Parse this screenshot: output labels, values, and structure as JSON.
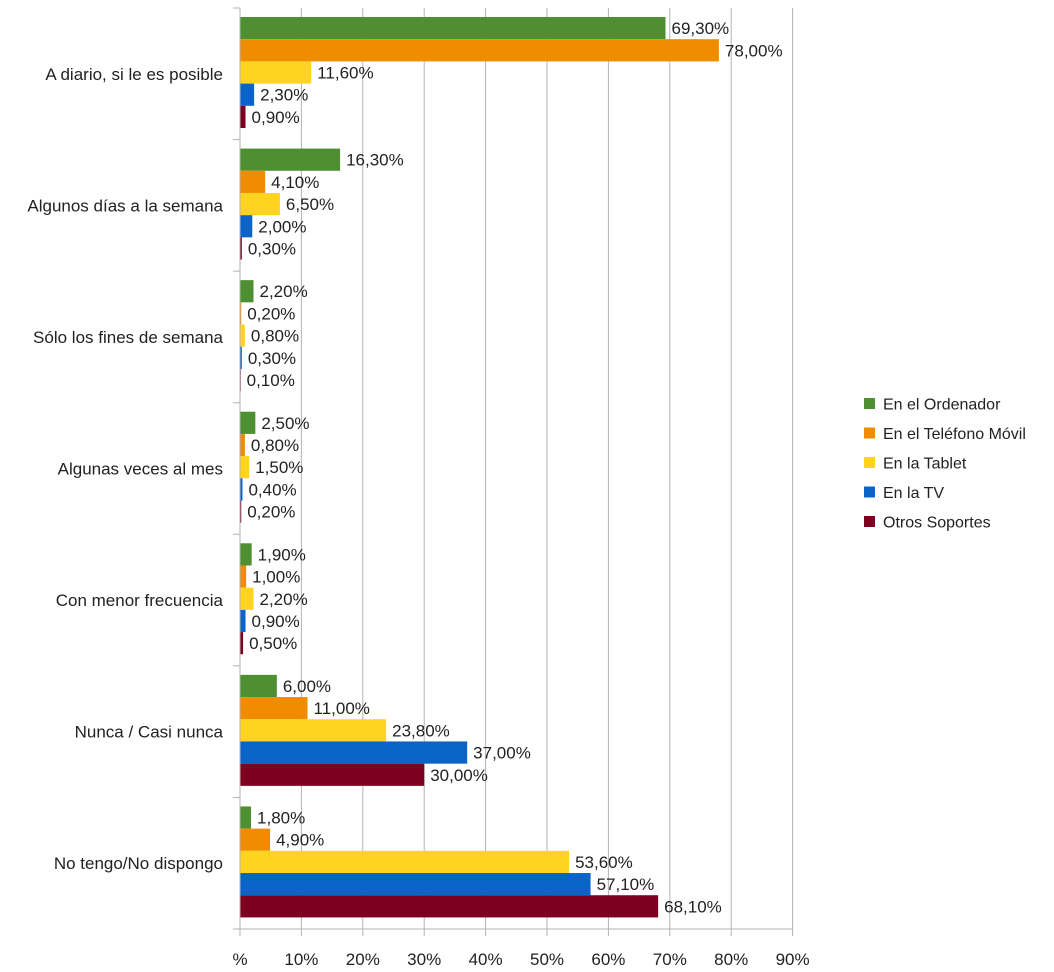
{
  "chart_data": {
    "type": "bar",
    "orientation": "horizontal",
    "categories": [
      "A diario, si le es posible",
      "Algunos días a la semana",
      "Sólo los fines de semana",
      "Algunas veces al mes",
      "Con menor frecuencia",
      "Nunca / Casi nunca",
      "No tengo/No dispongo"
    ],
    "series": [
      {
        "name": "En el Ordenador",
        "color": "#4e8f32",
        "values": [
          69.3,
          16.3,
          2.2,
          2.5,
          1.9,
          6.0,
          1.8
        ],
        "labels": [
          "69,30%",
          "16,30%",
          "2,20%",
          "2,50%",
          "1,90%",
          "6,00%",
          "1,80%"
        ]
      },
      {
        "name": "En el Teléfono Móvil",
        "color": "#f08c00",
        "values": [
          78.0,
          4.1,
          0.2,
          0.8,
          1.0,
          11.0,
          4.9
        ],
        "labels": [
          "78,00%",
          "4,10%",
          "0,20%",
          "0,80%",
          "1,00%",
          "11,00%",
          "4,90%"
        ]
      },
      {
        "name": "En la Tablet",
        "color": "#ffd320",
        "values": [
          11.6,
          6.5,
          0.8,
          1.5,
          2.2,
          23.8,
          53.6
        ],
        "labels": [
          "11,60%",
          "6,50%",
          "0,80%",
          "1,50%",
          "2,20%",
          "23,80%",
          "53,60%"
        ]
      },
      {
        "name": "En la TV",
        "color": "#0a64c8",
        "values": [
          2.3,
          2.0,
          0.3,
          0.4,
          0.9,
          37.0,
          57.1
        ],
        "labels": [
          "2,30%",
          "2,00%",
          "0,30%",
          "0,40%",
          "0,90%",
          "37,00%",
          "57,10%"
        ]
      },
      {
        "name": "Otros Soportes",
        "color": "#7e0021",
        "values": [
          0.9,
          0.3,
          0.1,
          0.2,
          0.5,
          30.0,
          68.1
        ],
        "labels": [
          "0,90%",
          "0,30%",
          "0,10%",
          "0,20%",
          "0,50%",
          "30,00%",
          "68,10%"
        ]
      }
    ],
    "xlim": [
      0,
      90
    ],
    "xticks": [
      0,
      10,
      20,
      30,
      40,
      50,
      60,
      70,
      80,
      90
    ],
    "xtick_labels": [
      "%",
      "10%",
      "20%",
      "30%",
      "40%",
      "50%",
      "60%",
      "70%",
      "80%",
      "90%"
    ],
    "grid": true,
    "legend_position": "right"
  }
}
